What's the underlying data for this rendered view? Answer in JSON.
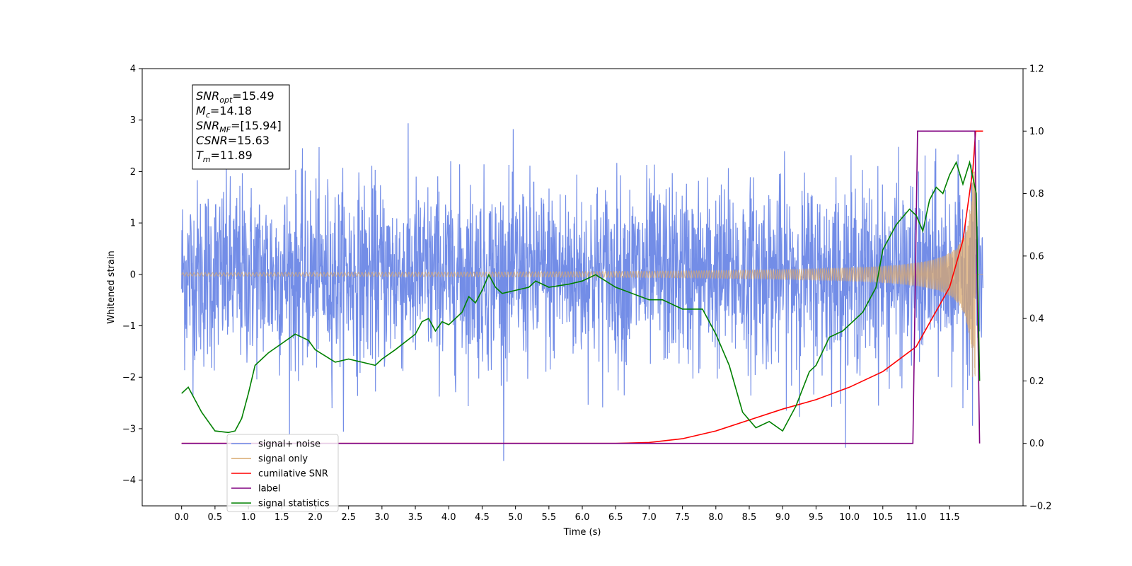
{
  "chart_data": {
    "type": "line",
    "xlabel": "Time (s)",
    "ylabel": "Whitened strain",
    "xlim": [
      -0.59,
      12.6
    ],
    "ylim": [
      -4.5,
      4.0
    ],
    "y2lim": [
      -0.2,
      1.2
    ],
    "x_ticks": [
      0.0,
      0.5,
      1.0,
      1.5,
      2.0,
      2.5,
      3.0,
      3.5,
      4.0,
      4.5,
      5.0,
      5.5,
      6.0,
      6.5,
      7.0,
      7.5,
      8.0,
      8.5,
      9.0,
      9.5,
      10.0,
      10.5,
      11.0,
      11.5
    ],
    "x_tick_labels": [
      "0.0",
      "0.5",
      "1.0",
      "1.5",
      "2.0",
      "2.5",
      "3.0",
      "3.5",
      "4.0",
      "4.5",
      "5.0",
      "5.5",
      "6.0",
      "6.5",
      "7.0",
      "7.5",
      "8.0",
      "8.5",
      "9.0",
      "9.5",
      "10.0",
      "10.5",
      "11.0",
      "11.5"
    ],
    "y_ticks": [
      -4,
      -3,
      -2,
      -1,
      0,
      1,
      2,
      3,
      4
    ],
    "y_tick_labels": [
      "−4",
      "−3",
      "−2",
      "−1",
      "0",
      "1",
      "2",
      "3",
      "4"
    ],
    "y2_ticks": [
      -0.2,
      0.0,
      0.2,
      0.4,
      0.6,
      0.8,
      1.0,
      1.2
    ],
    "y2_tick_labels": [
      "−0.2",
      "0.0",
      "0.2",
      "0.4",
      "0.6",
      "0.8",
      "1.0",
      "1.2"
    ],
    "grid": false,
    "legend_position": "bottom-left",
    "series": [
      {
        "name": "signal+ noise",
        "color": "#6b87e6",
        "axis": "left",
        "kind": "noise",
        "x_range": [
          0.0,
          12.0
        ],
        "sigma": 1.15,
        "peak_max": 3.6,
        "peak_min": -4.1
      },
      {
        "name": "signal only",
        "color": "#d9a86e",
        "axis": "left",
        "kind": "chirp",
        "x_range": [
          0.0,
          12.0
        ],
        "merger_time": 11.89,
        "peak_amplitude": 2.0
      },
      {
        "name": "cumilative SNR",
        "color": "#ff0000",
        "axis": "right",
        "x": [
          0.0,
          6.5,
          7.0,
          7.5,
          8.0,
          8.5,
          9.0,
          9.5,
          10.0,
          10.5,
          11.0,
          11.5,
          11.7,
          11.85,
          11.89,
          12.0
        ],
        "y": [
          0.0,
          0.0,
          0.003,
          0.015,
          0.04,
          0.075,
          0.11,
          0.14,
          0.18,
          0.23,
          0.31,
          0.5,
          0.65,
          0.88,
          1.0,
          1.0
        ]
      },
      {
        "name": "label",
        "color": "#800080",
        "axis": "right",
        "x": [
          0.0,
          10.95,
          11.02,
          11.88,
          11.95
        ],
        "y": [
          0.0,
          0.0,
          1.0,
          1.0,
          0.0
        ]
      },
      {
        "name": "signal statistics",
        "color": "#008000",
        "axis": "right",
        "x": [
          0.0,
          0.1,
          0.3,
          0.5,
          0.7,
          0.8,
          0.9,
          1.0,
          1.1,
          1.2,
          1.3,
          1.5,
          1.7,
          1.9,
          2.0,
          2.3,
          2.5,
          2.7,
          2.9,
          3.0,
          3.2,
          3.5,
          3.6,
          3.7,
          3.8,
          3.9,
          4.0,
          4.2,
          4.3,
          4.4,
          4.5,
          4.6,
          4.7,
          4.8,
          5.0,
          5.2,
          5.3,
          5.5,
          5.8,
          6.0,
          6.2,
          6.5,
          7.0,
          7.2,
          7.5,
          7.8,
          8.0,
          8.2,
          8.4,
          8.6,
          8.8,
          9.0,
          9.2,
          9.4,
          9.5,
          9.7,
          9.9,
          10.0,
          10.2,
          10.4,
          10.5,
          10.7,
          10.9,
          11.0,
          11.1,
          11.2,
          11.3,
          11.4,
          11.5,
          11.6,
          11.7,
          11.8,
          11.85,
          11.9,
          11.95
        ],
        "y": [
          0.16,
          0.18,
          0.1,
          0.04,
          0.035,
          0.04,
          0.08,
          0.16,
          0.25,
          0.27,
          0.29,
          0.32,
          0.35,
          0.33,
          0.3,
          0.26,
          0.27,
          0.26,
          0.25,
          0.27,
          0.3,
          0.35,
          0.39,
          0.4,
          0.36,
          0.39,
          0.38,
          0.42,
          0.47,
          0.45,
          0.49,
          0.54,
          0.5,
          0.48,
          0.49,
          0.5,
          0.52,
          0.5,
          0.51,
          0.52,
          0.54,
          0.5,
          0.46,
          0.46,
          0.43,
          0.43,
          0.35,
          0.25,
          0.1,
          0.05,
          0.07,
          0.04,
          0.12,
          0.23,
          0.25,
          0.34,
          0.36,
          0.38,
          0.42,
          0.5,
          0.62,
          0.7,
          0.75,
          0.73,
          0.68,
          0.78,
          0.82,
          0.8,
          0.86,
          0.9,
          0.83,
          0.9,
          0.85,
          0.8,
          0.2
        ]
      }
    ],
    "annotation_lines": [
      {
        "main": "SNR",
        "sub": "opt",
        "rest": "=15.49"
      },
      {
        "main": "M",
        "sub": "c",
        "rest": "=14.18"
      },
      {
        "main": "SNR",
        "sub": "MF",
        "rest": "=[15.94]"
      },
      {
        "main": "CSNR",
        "sub": "",
        "rest": "=15.63"
      },
      {
        "main": "T",
        "sub": "m",
        "rest": "=11.89"
      }
    ]
  }
}
